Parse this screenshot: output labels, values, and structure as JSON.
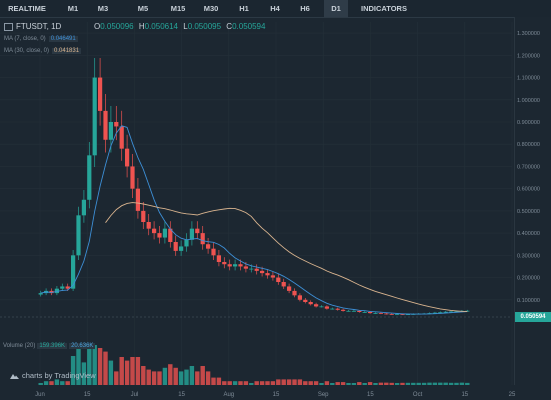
{
  "toolbar": {
    "tabs": [
      {
        "label": "REALTIME",
        "active": false
      },
      {
        "label": "M1",
        "active": false
      },
      {
        "label": "M3",
        "active": false
      },
      {
        "label": "M5",
        "active": false
      },
      {
        "label": "M15",
        "active": false
      },
      {
        "label": "M30",
        "active": false
      },
      {
        "label": "H1",
        "active": false
      },
      {
        "label": "H4",
        "active": false
      },
      {
        "label": "H6",
        "active": false
      },
      {
        "label": "D1",
        "active": true
      },
      {
        "label": "INDICATORS",
        "active": false
      }
    ]
  },
  "legend": {
    "symbol": "FTUSDT, 1D",
    "open_key": "O",
    "open": "0.050096",
    "high_key": "H",
    "high": "0.050614",
    "low_key": "L",
    "low": "0.050095",
    "close_key": "C",
    "close": "0.050594",
    "ma1_label": "MA (7, close, 0)",
    "ma1_value": "0.046491",
    "ma2_label": "MA (30, close, 0)",
    "ma2_value": "0.041831"
  },
  "volume": {
    "label": "Volume (20)",
    "value": "159.396K",
    "ma_value": "20.636K",
    "axis_ticks": [
      "100",
      "50"
    ]
  },
  "watermark": "charts by TradingView",
  "colors": {
    "up": "#26a69a",
    "down": "#ef5350",
    "ma_fast": "#3d8fd6",
    "ma_slow": "#d9b48f",
    "background": "#1c2731"
  },
  "chart_data": {
    "type": "candlestick",
    "price_axis_ticks": [
      "1.300000",
      "1.200000",
      "1.100000",
      "1.000000",
      "0.900000",
      "0.800000",
      "0.700000",
      "0.600000",
      "0.500000",
      "0.400000",
      "0.300000",
      "0.200000",
      "0.100000"
    ],
    "time_axis_ticks": [
      "Jun",
      "15",
      "Jul",
      "15",
      "Aug",
      "15",
      "Sep",
      "15",
      "Oct",
      "15",
      "25"
    ],
    "last_price": "0.050594",
    "ylim": [
      0,
      1.35
    ],
    "approx_closes": [
      0.13,
      0.14,
      0.13,
      0.15,
      0.16,
      0.15,
      0.3,
      0.48,
      0.55,
      0.75,
      1.1,
      0.95,
      0.82,
      0.9,
      0.88,
      0.78,
      0.7,
      0.6,
      0.5,
      0.45,
      0.42,
      0.4,
      0.38,
      0.42,
      0.36,
      0.32,
      0.34,
      0.37,
      0.42,
      0.4,
      0.35,
      0.33,
      0.3,
      0.27,
      0.26,
      0.25,
      0.26,
      0.25,
      0.24,
      0.24,
      0.23,
      0.22,
      0.21,
      0.2,
      0.18,
      0.16,
      0.14,
      0.12,
      0.1,
      0.09,
      0.08,
      0.07,
      0.07,
      0.06,
      0.06,
      0.055,
      0.05,
      0.05,
      0.05,
      0.045,
      0.045,
      0.04,
      0.04,
      0.038,
      0.036,
      0.035,
      0.035,
      0.034,
      0.035,
      0.036,
      0.037,
      0.038,
      0.04,
      0.042,
      0.044,
      0.046,
      0.047,
      0.048,
      0.05,
      0.0506
    ]
  }
}
